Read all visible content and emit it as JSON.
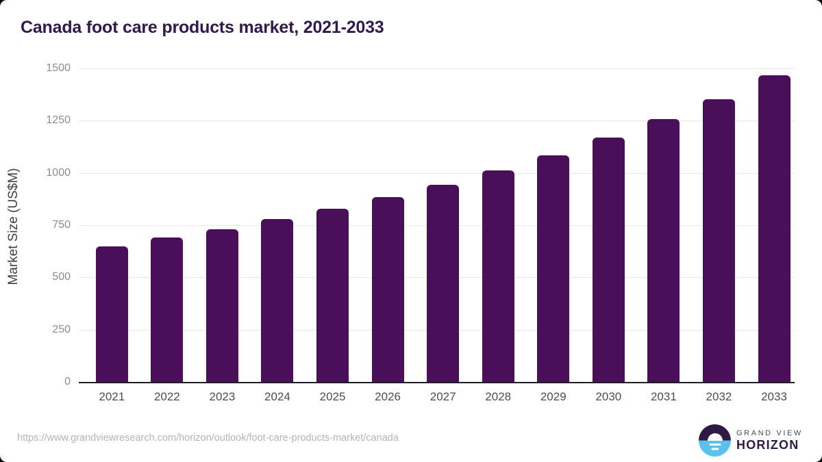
{
  "title": "Canada foot care products market, 2021-2033",
  "source_url": "https://www.grandviewresearch.com/horizon/outlook/foot-care-products-market/canada",
  "logo": {
    "top_text": "GRAND VIEW",
    "bottom_text": "HORIZON"
  },
  "colors": {
    "bar": "#4a0f58",
    "title": "#2f1a4d",
    "logo_dark_half": "#2e1a47",
    "logo_blue_half": "#5bc2ee",
    "gridline": "#e9e9e9",
    "axis_line": "#1c1c24"
  },
  "chart_data": {
    "type": "bar",
    "title": "Canada foot care products market, 2021-2033",
    "categories": [
      "2021",
      "2022",
      "2023",
      "2024",
      "2025",
      "2026",
      "2027",
      "2028",
      "2029",
      "2030",
      "2031",
      "2032",
      "2033"
    ],
    "values": [
      650,
      690,
      732,
      780,
      828,
      883,
      942,
      1012,
      1084,
      1168,
      1257,
      1354,
      1466
    ],
    "xlabel": "",
    "ylabel": "Market Size (US$M)",
    "ylim": [
      0,
      1500
    ],
    "yticks": [
      0,
      250,
      500,
      750,
      1000,
      1250,
      1500
    ],
    "grid": true,
    "legend": false,
    "bar_color": "#4a0f58"
  }
}
